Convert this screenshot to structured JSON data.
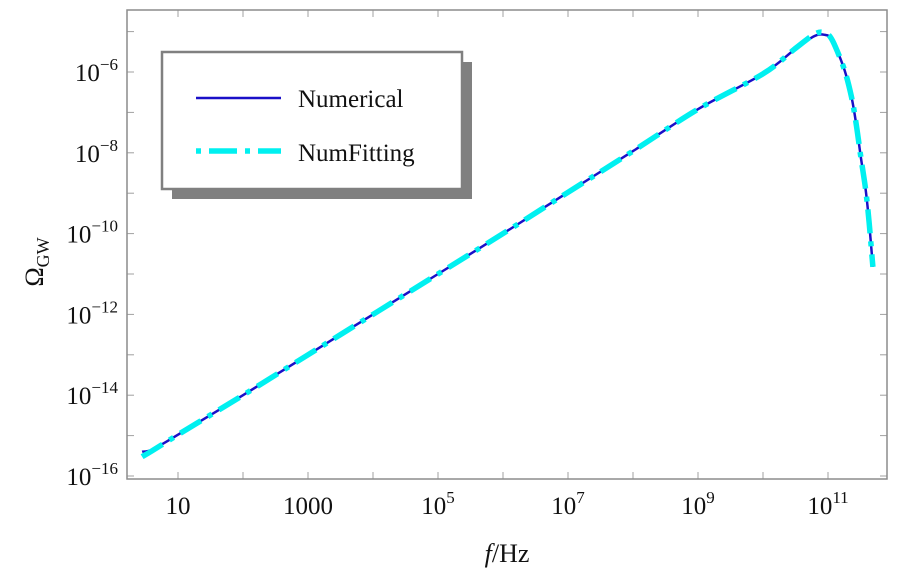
{
  "chart_data": {
    "type": "line",
    "title": "",
    "xlabel": "f/Hz",
    "ylabel": "Ω_GW",
    "xscale": "log",
    "yscale": "log",
    "xlim": [
      2.0,
      1000000000000.0
    ],
    "ylim": [
      7e-17,
      2e-05
    ],
    "x_ticks": [
      {
        "value": 10,
        "label": "10",
        "base": "10",
        "exp": ""
      },
      {
        "value": 1000,
        "label": "1000",
        "base": "1000",
        "exp": ""
      },
      {
        "value": 100000,
        "label": "10^5",
        "base": "10",
        "exp": "5"
      },
      {
        "value": 10000000,
        "label": "10^7",
        "base": "10",
        "exp": "7"
      },
      {
        "value": 1000000000,
        "label": "10^9",
        "base": "10",
        "exp": "9"
      },
      {
        "value": 100000000000,
        "label": "10^11",
        "base": "10",
        "exp": "11"
      }
    ],
    "y_ticks": [
      {
        "value": 1e-16,
        "label": "10^-16",
        "base": "10",
        "exp": "−16"
      },
      {
        "value": 1e-14,
        "label": "10^-14",
        "base": "10",
        "exp": "−14"
      },
      {
        "value": 1e-12,
        "label": "10^-12",
        "base": "10",
        "exp": "−12"
      },
      {
        "value": 1e-10,
        "label": "10^-10",
        "base": "10",
        "exp": "−10"
      },
      {
        "value": 1e-08,
        "label": "10^-8",
        "base": "10",
        "exp": "−8"
      },
      {
        "value": 1e-06,
        "label": "10^-6",
        "base": "10",
        "exp": "−6"
      }
    ],
    "grid": false,
    "legend_position": "upper left (boxed, drop shadow)",
    "series": [
      {
        "name": "Numerical",
        "color": "#1a10c8",
        "style": "solid",
        "points": [
          [
            2.8,
            4e-16
          ],
          [
            4.0,
            4.5e-16
          ],
          [
            10,
            1.05e-15
          ],
          [
            100,
            1e-14
          ],
          [
            1000,
            1e-13
          ],
          [
            10000.0,
            1e-12
          ],
          [
            100000.0,
            1e-11
          ],
          [
            1000000.0,
            1e-10
          ],
          [
            10000000.0,
            1.05e-09
          ],
          [
            100000000.0,
            1.1e-08
          ],
          [
            1000000000.0,
            1.2e-07
          ],
          [
            10000000000.0,
            9e-07
          ],
          [
            30000000000.0,
            3.5e-06
          ],
          [
            55000000000.0,
            7e-06
          ],
          [
            73000000000.0,
            8.5e-06
          ],
          [
            90000000000.0,
            8.3e-06
          ],
          [
            107000000000.0,
            7.4e-06
          ],
          [
            130000000000.0,
            4.2e-06
          ],
          [
            180000000000.0,
            1.1e-06
          ],
          [
            230000000000.0,
            2.4e-07
          ],
          [
            270000000000.0,
            5.5e-08
          ],
          [
            320000000000.0,
            7.9e-09
          ],
          [
            380000000000.0,
            1.2e-09
          ],
          [
            430000000000.0,
            1.8e-10
          ],
          [
            490000000000.0,
            1.5e-11
          ]
        ]
      },
      {
        "name": "NumFitting",
        "color": "#00f0f0",
        "style": "dash-dot",
        "points": [
          [
            2.8,
            3e-16
          ],
          [
            4.0,
            4.2e-16
          ],
          [
            10,
            1.05e-15
          ],
          [
            100,
            1e-14
          ],
          [
            1000,
            1e-13
          ],
          [
            10000.0,
            1e-12
          ],
          [
            100000.0,
            1e-11
          ],
          [
            1000000.0,
            1e-10
          ],
          [
            10000000.0,
            1.05e-09
          ],
          [
            100000000.0,
            1.1e-08
          ],
          [
            1000000000.0,
            1.2e-07
          ],
          [
            10000000000.0,
            9e-07
          ],
          [
            30000000000.0,
            3.6e-06
          ],
          [
            55000000000.0,
            7.6e-06
          ],
          [
            73000000000.0,
            9.6e-06
          ],
          [
            90000000000.0,
            9.2e-06
          ],
          [
            107000000000.0,
            7.6e-06
          ],
          [
            130000000000.0,
            4.2e-06
          ],
          [
            180000000000.0,
            1.1e-06
          ],
          [
            230000000000.0,
            2.4e-07
          ],
          [
            270000000000.0,
            5.5e-08
          ],
          [
            320000000000.0,
            7.9e-09
          ],
          [
            380000000000.0,
            1.2e-09
          ],
          [
            430000000000.0,
            1.8e-10
          ],
          [
            490000000000.0,
            1.5e-11
          ]
        ]
      }
    ]
  },
  "axes": {
    "xlabel_italic": "f",
    "xlabel_rest": "/Hz",
    "ylabel_main": "Ω",
    "ylabel_sub": "GW"
  },
  "legend": {
    "items": [
      {
        "label": "Numerical",
        "color": "#1a10c8",
        "style": "solid"
      },
      {
        "label": "NumFitting",
        "color": "#00f0f0",
        "style": "dash-dot"
      }
    ],
    "frame_color": "#808080",
    "shadow_color": "#808080"
  },
  "colors": {
    "frame": "#8c8c8c",
    "tick": "#a0a0a0",
    "background": "#ffffff"
  }
}
